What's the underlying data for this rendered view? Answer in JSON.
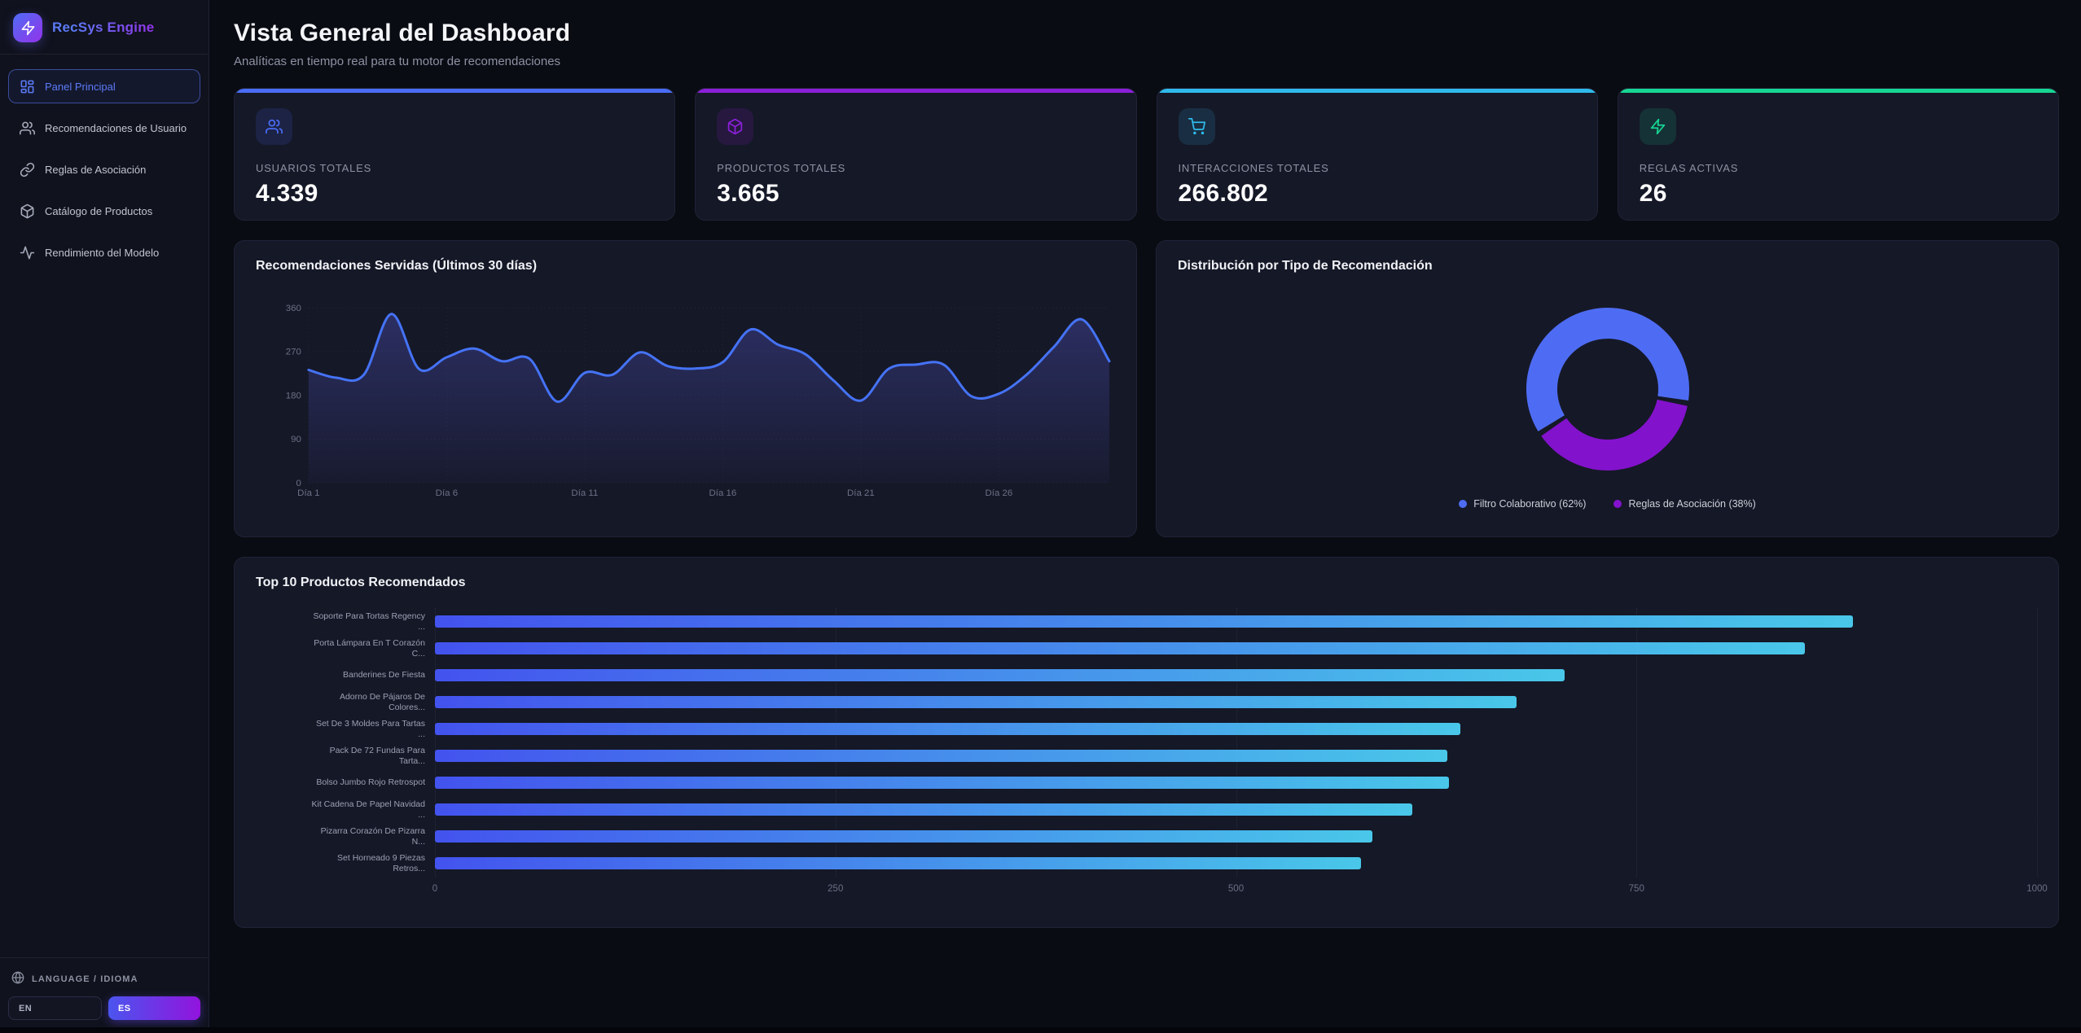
{
  "sidebar": {
    "brand": "RecSys Engine",
    "nav": [
      {
        "label": "Panel Principal",
        "icon": "dashboard-icon",
        "active": true
      },
      {
        "label": "Recomendaciones de Usuario",
        "icon": "users-icon",
        "active": false
      },
      {
        "label": "Reglas de Asociación",
        "icon": "link-icon",
        "active": false
      },
      {
        "label": "Catálogo de Productos",
        "icon": "package-icon",
        "active": false
      },
      {
        "label": "Rendimiento del Modelo",
        "icon": "activity-icon",
        "active": false
      }
    ],
    "language": {
      "label": "LANGUAGE / IDIOMA",
      "icon": "globe-icon",
      "options": [
        {
          "code": "EN",
          "active": false
        },
        {
          "code": "ES",
          "active": true
        }
      ]
    }
  },
  "header": {
    "title": "Vista General del Dashboard",
    "subtitle": "Analíticas en tiempo real para tu motor de recomendaciones"
  },
  "stats": [
    {
      "label": "USUARIOS TOTALES",
      "value": "4.339",
      "accent": "#4a6cf7",
      "icon": "users-icon"
    },
    {
      "label": "PRODUCTOS TOTALES",
      "value": "3.665",
      "accent": "#8b1fd8",
      "icon": "package-icon"
    },
    {
      "label": "INTERACCIONES TOTALES",
      "value": "266.802",
      "accent": "#2fb9ea",
      "icon": "cart-icon"
    },
    {
      "label": "REGLAS ACTIVAS",
      "value": "26",
      "accent": "#17d592",
      "icon": "bolt-icon"
    }
  ],
  "chart_data": [
    {
      "type": "area",
      "title": "Recomendaciones Servidas (Últimos 30 días)",
      "x_tick_days": [
        1,
        6,
        11,
        16,
        21,
        26
      ],
      "x_tick_labels": [
        "Día 1",
        "Día 6",
        "Día 11",
        "Día 16",
        "Día 21",
        "Día 26"
      ],
      "y_ticks": [
        0,
        90,
        180,
        270,
        360
      ],
      "ylim": [
        0,
        360
      ],
      "grid": true,
      "line_color": "#4573f7",
      "fill_color": "#5d5fe2",
      "series": [
        {
          "name": "Recomendaciones",
          "values": [
            232,
            216,
            222,
            347,
            234,
            258,
            276,
            250,
            255,
            167,
            226,
            222,
            268,
            240,
            235,
            248,
            315,
            284,
            264,
            211,
            169,
            234,
            243,
            243,
            178,
            183,
            222,
            280,
            336,
            250
          ]
        }
      ]
    },
    {
      "type": "pie",
      "title": "Distribución por Tipo de Recomendación",
      "donut": true,
      "legend_position": "bottom",
      "slices": [
        {
          "label": "Filtro Colaborativo",
          "pct": 62,
          "color": "#4e6cf3",
          "legend": "Filtro Colaborativo (62%)"
        },
        {
          "label": "Reglas de Asociación",
          "pct": 38,
          "color": "#8312cc",
          "legend": "Reglas de Asociación (38%)"
        }
      ]
    },
    {
      "type": "bar",
      "orientation": "horizontal",
      "title": "Top 10 Productos Recomendados",
      "categories": [
        [
          "Soporte Para Tortas Regency",
          "..."
        ],
        [
          "Porta Lámpara En T Corazón",
          "C..."
        ],
        [
          "Banderines De Fiesta",
          ""
        ],
        [
          "Adorno De Pájaros De",
          "Colores..."
        ],
        [
          "Set De 3 Moldes Para Tartas",
          "..."
        ],
        [
          "Pack De 72 Fundas Para",
          "Tarta..."
        ],
        [
          "Bolso Jumbo Rojo Retrospot",
          ""
        ],
        [
          "Kit Cadena De Papel Navidad",
          "..."
        ],
        [
          "Pizarra Corazón De Pizarra",
          "N..."
        ],
        [
          "Set Horneado 9 Piezas",
          "Retros..."
        ]
      ],
      "values": [
        885,
        855,
        705,
        675,
        640,
        632,
        633,
        610,
        585,
        578
      ],
      "xlim": [
        0,
        1000
      ],
      "x_ticks": [
        0,
        250,
        500,
        750,
        1000
      ],
      "bar_gradient": [
        "#4353ee",
        "#49c7e9"
      ]
    }
  ]
}
